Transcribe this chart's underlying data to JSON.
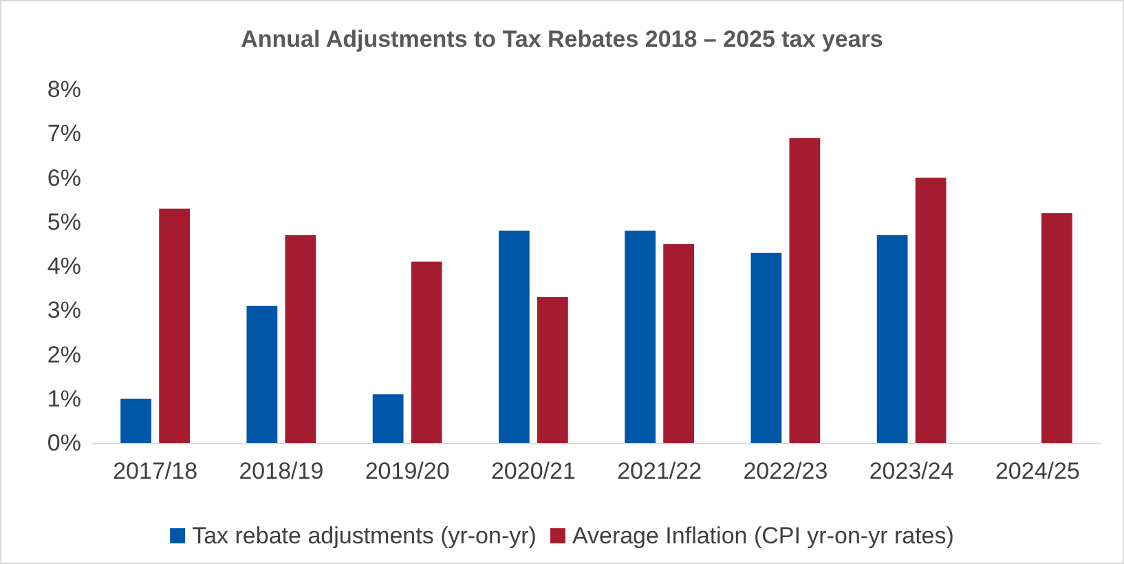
{
  "chart_data": {
    "type": "bar",
    "title": "Annual Adjustments to Tax Rebates 2018 – 2025 tax years",
    "categories": [
      "2017/18",
      "2018/19",
      "2019/20",
      "2020/21",
      "2021/22",
      "2022/23",
      "2023/24",
      "2024/25"
    ],
    "series": [
      {
        "name": "Tax rebate adjustments (yr-on-yr)",
        "color": "#0057a8",
        "values": [
          1.0,
          3.1,
          1.1,
          4.8,
          4.8,
          4.3,
          4.7,
          null
        ]
      },
      {
        "name": "Average Inflation (CPI yr-on-yr rates)",
        "color": "#a51c30",
        "values": [
          5.3,
          4.7,
          4.1,
          3.3,
          4.5,
          6.9,
          6.0,
          5.2
        ]
      }
    ],
    "ylim": [
      0,
      8
    ],
    "yticks": [
      {
        "value": 0,
        "label": "0%"
      },
      {
        "value": 1,
        "label": "1%"
      },
      {
        "value": 2,
        "label": "2%"
      },
      {
        "value": 3,
        "label": "3%"
      },
      {
        "value": 4,
        "label": "4%"
      },
      {
        "value": 5,
        "label": "5%"
      },
      {
        "value": 6,
        "label": "6%"
      },
      {
        "value": 7,
        "label": "7%"
      },
      {
        "value": 8,
        "label": "8%"
      }
    ],
    "grid": false,
    "legend": "bottom"
  }
}
